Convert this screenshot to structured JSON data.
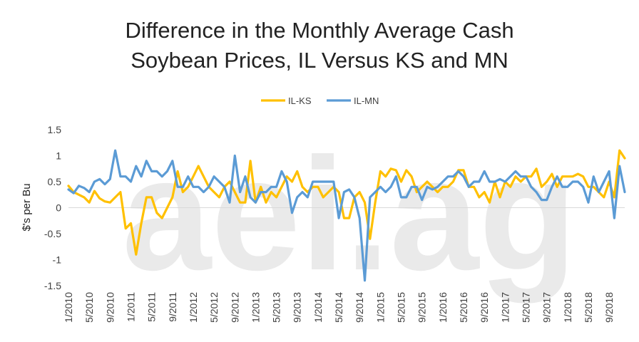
{
  "chart_data": {
    "type": "line",
    "title_lines": [
      "Difference in the Monthly Average Cash",
      "Soybean Prices, IL Versus KS and MN"
    ],
    "ylabel": "$'s per Bu",
    "ylim": [
      -1.5,
      1.5
    ],
    "yticks": [
      1.5,
      1,
      0.5,
      0,
      -0.5,
      -1,
      -1.5
    ],
    "ytick_labels": [
      "1.5",
      "1",
      "0.5",
      "0",
      "-0.5",
      "-1",
      "-1.5"
    ],
    "xtick_labels": [
      "1/2010",
      "5/2010",
      "9/2010",
      "1/2011",
      "5/2011",
      "9/2011",
      "1/2012",
      "5/2012",
      "9/2012",
      "1/2013",
      "5/2013",
      "9/2013",
      "1/2014",
      "5/2014",
      "9/2014",
      "1/2015",
      "5/2015",
      "9/2015",
      "1/2016",
      "5/2016",
      "9/2016",
      "1/2017",
      "5/2017",
      "9/2017",
      "1/2018",
      "5/2018",
      "9/2018"
    ],
    "x_start": "1/2010",
    "x_end": "12/2018",
    "legend_position": "top-center",
    "grid": false,
    "watermark": "aei.ag",
    "series": [
      {
        "name": "IL-KS",
        "color": "#FFC000",
        "values": [
          0.42,
          0.3,
          0.25,
          0.2,
          0.1,
          0.32,
          0.18,
          0.12,
          0.1,
          0.2,
          0.3,
          -0.4,
          -0.3,
          -0.9,
          -0.3,
          0.2,
          0.2,
          -0.1,
          -0.2,
          0.0,
          0.2,
          0.7,
          0.3,
          0.4,
          0.6,
          0.8,
          0.6,
          0.4,
          0.3,
          0.2,
          0.4,
          0.5,
          0.3,
          0.1,
          0.1,
          0.9,
          0.1,
          0.4,
          0.1,
          0.3,
          0.2,
          0.4,
          0.6,
          0.5,
          0.7,
          0.4,
          0.3,
          0.4,
          0.4,
          0.2,
          0.3,
          0.4,
          0.3,
          -0.2,
          -0.2,
          0.2,
          0.3,
          0.1,
          -0.6,
          0.1,
          0.7,
          0.6,
          0.75,
          0.72,
          0.5,
          0.72,
          0.6,
          0.3,
          0.4,
          0.5,
          0.4,
          0.3,
          0.4,
          0.4,
          0.5,
          0.72,
          0.72,
          0.4,
          0.4,
          0.2,
          0.3,
          0.1,
          0.5,
          0.2,
          0.5,
          0.4,
          0.6,
          0.5,
          0.6,
          0.6,
          0.75,
          0.4,
          0.5,
          0.65,
          0.4,
          0.6,
          0.6,
          0.6,
          0.65,
          0.6,
          0.4,
          0.4,
          0.3,
          0.2,
          0.5,
          0.2,
          1.1,
          0.95
        ]
      },
      {
        "name": "IL-MN",
        "color": "#5B9BD5",
        "values": [
          0.35,
          0.28,
          0.42,
          0.38,
          0.3,
          0.5,
          0.55,
          0.45,
          0.55,
          1.1,
          0.6,
          0.6,
          0.5,
          0.8,
          0.6,
          0.9,
          0.7,
          0.7,
          0.6,
          0.7,
          0.9,
          0.4,
          0.4,
          0.6,
          0.4,
          0.4,
          0.3,
          0.4,
          0.6,
          0.5,
          0.4,
          0.1,
          1.0,
          0.3,
          0.6,
          0.2,
          0.1,
          0.3,
          0.3,
          0.4,
          0.4,
          0.7,
          0.5,
          -0.1,
          0.2,
          0.3,
          0.2,
          0.5,
          0.5,
          0.5,
          0.5,
          0.5,
          -0.2,
          0.3,
          0.35,
          0.2,
          -0.2,
          -1.4,
          0.2,
          0.3,
          0.4,
          0.3,
          0.4,
          0.6,
          0.2,
          0.2,
          0.4,
          0.4,
          0.15,
          0.4,
          0.35,
          0.4,
          0.5,
          0.6,
          0.6,
          0.7,
          0.6,
          0.4,
          0.5,
          0.5,
          0.7,
          0.5,
          0.5,
          0.55,
          0.5,
          0.6,
          0.7,
          0.6,
          0.6,
          0.4,
          0.3,
          0.15,
          0.15,
          0.4,
          0.6,
          0.4,
          0.4,
          0.5,
          0.5,
          0.4,
          0.1,
          0.6,
          0.3,
          0.5,
          0.7,
          -0.2,
          0.8,
          0.3
        ]
      }
    ]
  }
}
